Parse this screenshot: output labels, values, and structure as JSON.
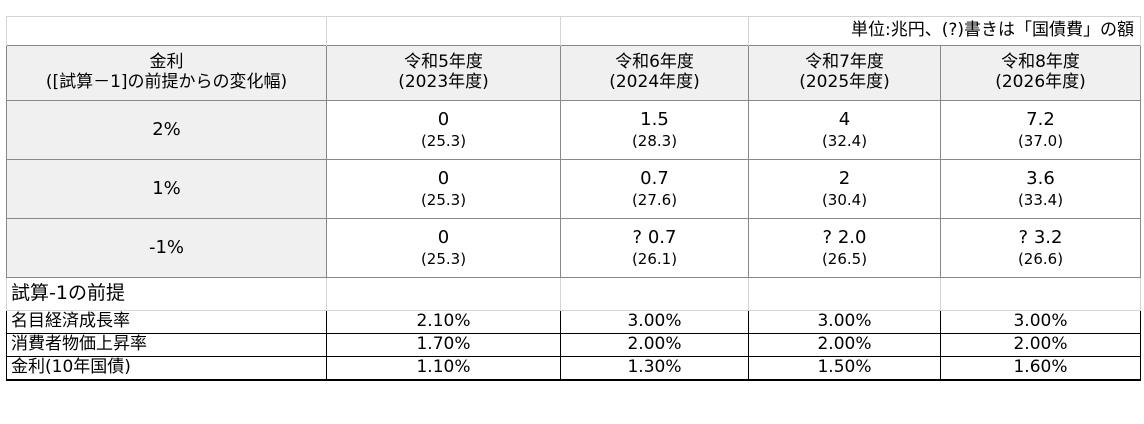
{
  "unit_note": "単位:兆円、(?)書きは「国債費」の額",
  "header": {
    "rate_label_line1": "金利",
    "rate_label_line2": "([試算－1]の前提からの変化幅)",
    "years": [
      {
        "line1": "令和5年度",
        "line2": "(2023年度)"
      },
      {
        "line1": "令和6年度",
        "line2": "(2024年度)"
      },
      {
        "line1": "令和7年度",
        "line2": "(2025年度)"
      },
      {
        "line1": "令和8年度",
        "line2": "(2026年度)"
      }
    ]
  },
  "rows": [
    {
      "rate": "2%",
      "cells": [
        {
          "main": "0",
          "sub": "(25.3)"
        },
        {
          "main": "1.5",
          "sub": "(28.3)"
        },
        {
          "main": "4",
          "sub": "(32.4)"
        },
        {
          "main": "7.2",
          "sub": "(37.0)"
        }
      ]
    },
    {
      "rate": "1%",
      "cells": [
        {
          "main": "0",
          "sub": "(25.3)"
        },
        {
          "main": "0.7",
          "sub": "(27.6)"
        },
        {
          "main": "2",
          "sub": "(30.4)"
        },
        {
          "main": "3.6",
          "sub": "(33.4)"
        }
      ]
    },
    {
      "rate": "-1%",
      "cells": [
        {
          "main": "0",
          "sub": "(25.3)"
        },
        {
          "main": "? 0.7",
          "sub": "(26.1)"
        },
        {
          "main": "? 2.0",
          "sub": "(26.5)"
        },
        {
          "main": "? 3.2",
          "sub": "(26.6)"
        }
      ]
    }
  ],
  "premise_title": "試算-1の前提",
  "premises": [
    {
      "label": "名目経済成長率",
      "values": [
        "2.10%",
        "3.00%",
        "3.00%",
        "3.00%"
      ]
    },
    {
      "label": "消費者物価上昇率",
      "values": [
        "1.70%",
        "2.00%",
        "2.00%",
        "2.00%"
      ]
    },
    {
      "label": "金利(10年国債)",
      "values": [
        "1.10%",
        "1.30%",
        "1.50%",
        "1.60%"
      ]
    }
  ]
}
